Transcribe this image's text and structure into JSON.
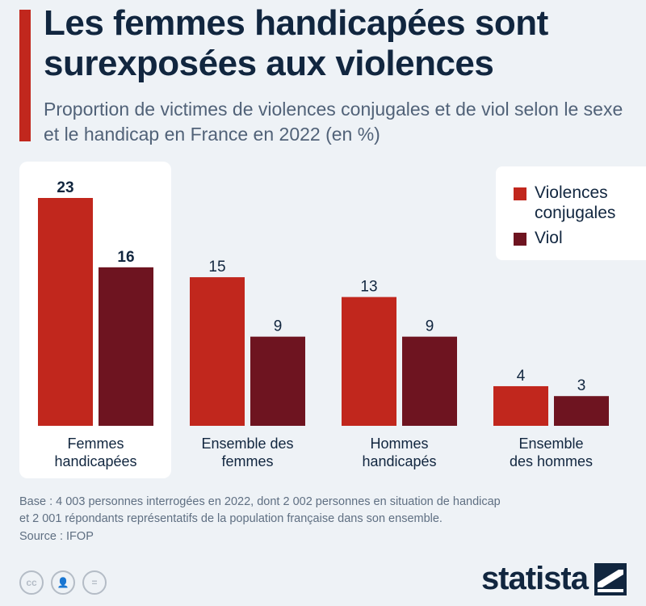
{
  "header": {
    "title": "Les femmes handicapées sont surexposées aux violences",
    "subtitle": "Proportion de victimes de violences conjugales et de viol selon le sexe et le handicap en France en 2022 (en %)"
  },
  "legend": {
    "items": [
      {
        "label": "Violences conjugales",
        "color": "#c1271d"
      },
      {
        "label": "Viol",
        "color": "#6e1420"
      }
    ]
  },
  "chart_data": {
    "type": "bar",
    "categories": [
      "Femmes\nhandicapées",
      "Ensemble des\nfemmes",
      "Hommes\nhandicapés",
      "Ensemble\ndes hommes"
    ],
    "series": [
      {
        "name": "Violences conjugales",
        "values": [
          23,
          15,
          13,
          4
        ],
        "color": "#c1271d"
      },
      {
        "name": "Viol",
        "values": [
          16,
          9,
          9,
          3
        ],
        "color": "#6e1420"
      }
    ],
    "highlighted_category": "Femmes\nhandicapées",
    "title": "Les femmes handicapées sont surexposées aux violences",
    "subtitle": "Proportion de victimes de violences conjugales et de viol selon le sexe et le handicap en France en 2022 (en %)",
    "xlabel": "",
    "ylabel": "",
    "ylim": [
      0,
      23
    ],
    "grid": false,
    "legend_position": "top-right"
  },
  "footer": {
    "note_line1": "Base : 4 003 personnes interrogées en 2022, dont 2 002 personnes en situation de handicap",
    "note_line2": "et 2 001 répondants représentatifs de la population française dans son ensemble.",
    "source": "Source : IFOP",
    "license_icons": [
      {
        "icon": "cc-icon",
        "glyph": "cc"
      },
      {
        "icon": "by-icon",
        "glyph": "👤"
      },
      {
        "icon": "nd-icon",
        "glyph": "="
      }
    ],
    "brand": "statista"
  }
}
